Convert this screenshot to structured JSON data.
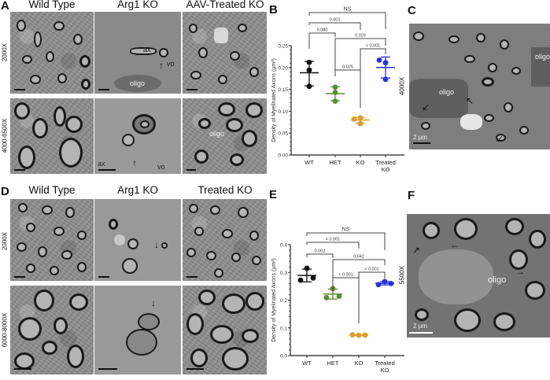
{
  "panels": {
    "A": {
      "letter": "A",
      "columns": [
        "Wild Type",
        "Arg1 KO",
        "AAV-Treated KO"
      ],
      "rows": [
        "2000X",
        "4000-6500X"
      ],
      "annotations": {
        "ax": "ax",
        "vo": "vo",
        "oligo": "oligo"
      }
    },
    "B": {
      "letter": "B"
    },
    "C": {
      "letter": "C",
      "magnification": "4000X",
      "labels": {
        "oligo_1": "oligo",
        "oligo_2": "oligo"
      },
      "scale_bar": "2 μm"
    },
    "D": {
      "letter": "D",
      "columns": [
        "Wild Type",
        "Arg1 KO",
        "Treated KO"
      ],
      "rows": [
        "2000X",
        "6000-8000X"
      ]
    },
    "E": {
      "letter": "E"
    },
    "F": {
      "letter": "F",
      "magnification": "5500X",
      "labels": {
        "oligo": "oligo"
      },
      "scale_bar": "2 μm"
    }
  },
  "chart_data": [
    {
      "panel": "B",
      "type": "scatter",
      "title": "",
      "xlabel": "",
      "ylabel": "Density of Myelinated Axons (μm²)",
      "categories": [
        "WT",
        "HET",
        "KO",
        "Treated KO"
      ],
      "ylim": [
        0,
        0.25
      ],
      "yticks": [
        "0.00",
        "0.05",
        "0.10",
        "0.15",
        "0.20",
        "0.25"
      ],
      "grid": false,
      "series": [
        {
          "name": "WT",
          "color": "#111111",
          "points": [
            0.212,
            0.194,
            0.157
          ],
          "mean": 0.188,
          "sd_low": 0.158,
          "sd_high": 0.214
        },
        {
          "name": "HET",
          "color": "#5a8f2e",
          "points": [
            0.155,
            0.143,
            0.123
          ],
          "mean": 0.14,
          "sd_low": 0.124,
          "sd_high": 0.156
        },
        {
          "name": "KO",
          "color": "#e59a2a",
          "points": [
            0.085,
            0.082,
            0.072
          ],
          "mean": 0.08,
          "sd_low": 0.073,
          "sd_high": 0.086
        },
        {
          "name": "Treated KO",
          "color": "#2233dd",
          "points": [
            0.211,
            0.217,
            0.173
          ],
          "mean": 0.2,
          "sd_low": 0.176,
          "sd_high": 0.224
        }
      ],
      "comparisons": [
        {
          "from": "WT",
          "to": "Treated KO",
          "label": "NS"
        },
        {
          "from": "WT",
          "to": "KO",
          "label": "0.001"
        },
        {
          "from": "WT",
          "to": "HET",
          "label": "0.080"
        },
        {
          "from": "HET",
          "to": "Treated KO",
          "label": "0.026"
        },
        {
          "from": "KO",
          "to": "Treated KO",
          "label": "< 0.001"
        },
        {
          "from": "HET",
          "to": "KO",
          "label": "0.025"
        }
      ]
    },
    {
      "panel": "E",
      "type": "scatter",
      "title": "",
      "xlabel": "",
      "ylabel": "Density of Myelinated Axons (μm²)",
      "categories": [
        "WT",
        "HET",
        "KO",
        "Treated KO"
      ],
      "ylim": [
        0,
        0.4
      ],
      "yticks": [
        "0.0",
        "0.1",
        "0.2",
        "0.3",
        "0.4"
      ],
      "grid": false,
      "series": [
        {
          "name": "WT",
          "color": "#111111",
          "points": [
            0.315,
            0.272,
            0.28
          ],
          "mean": 0.289,
          "sd_low": 0.266,
          "sd_high": 0.312
        },
        {
          "name": "HET",
          "color": "#5a8f2e",
          "points": [
            0.242,
            0.209,
            0.214
          ],
          "mean": 0.222,
          "sd_low": 0.204,
          "sd_high": 0.24
        },
        {
          "name": "KO",
          "color": "#e59a2a",
          "points": [
            0.073,
            0.075,
            0.074
          ],
          "mean": 0.074,
          "sd_low": 0.073,
          "sd_high": 0.075
        },
        {
          "name": "Treated KO",
          "color": "#2233dd",
          "points": [
            0.267,
            0.256,
            0.26
          ],
          "mean": 0.261,
          "sd_low": 0.255,
          "sd_high": 0.267
        }
      ],
      "comparisons": [
        {
          "from": "WT",
          "to": "Treated KO",
          "label": "NS"
        },
        {
          "from": "WT",
          "to": "KO",
          "label": "< 0.001"
        },
        {
          "from": "WT",
          "to": "HET",
          "label": "0.002"
        },
        {
          "from": "HET",
          "to": "Treated KO",
          "label": "0.042"
        },
        {
          "from": "HET",
          "to": "KO",
          "label": "< 0.001"
        },
        {
          "from": "KO",
          "to": "Treated KO",
          "label": "< 0.001"
        }
      ]
    }
  ]
}
